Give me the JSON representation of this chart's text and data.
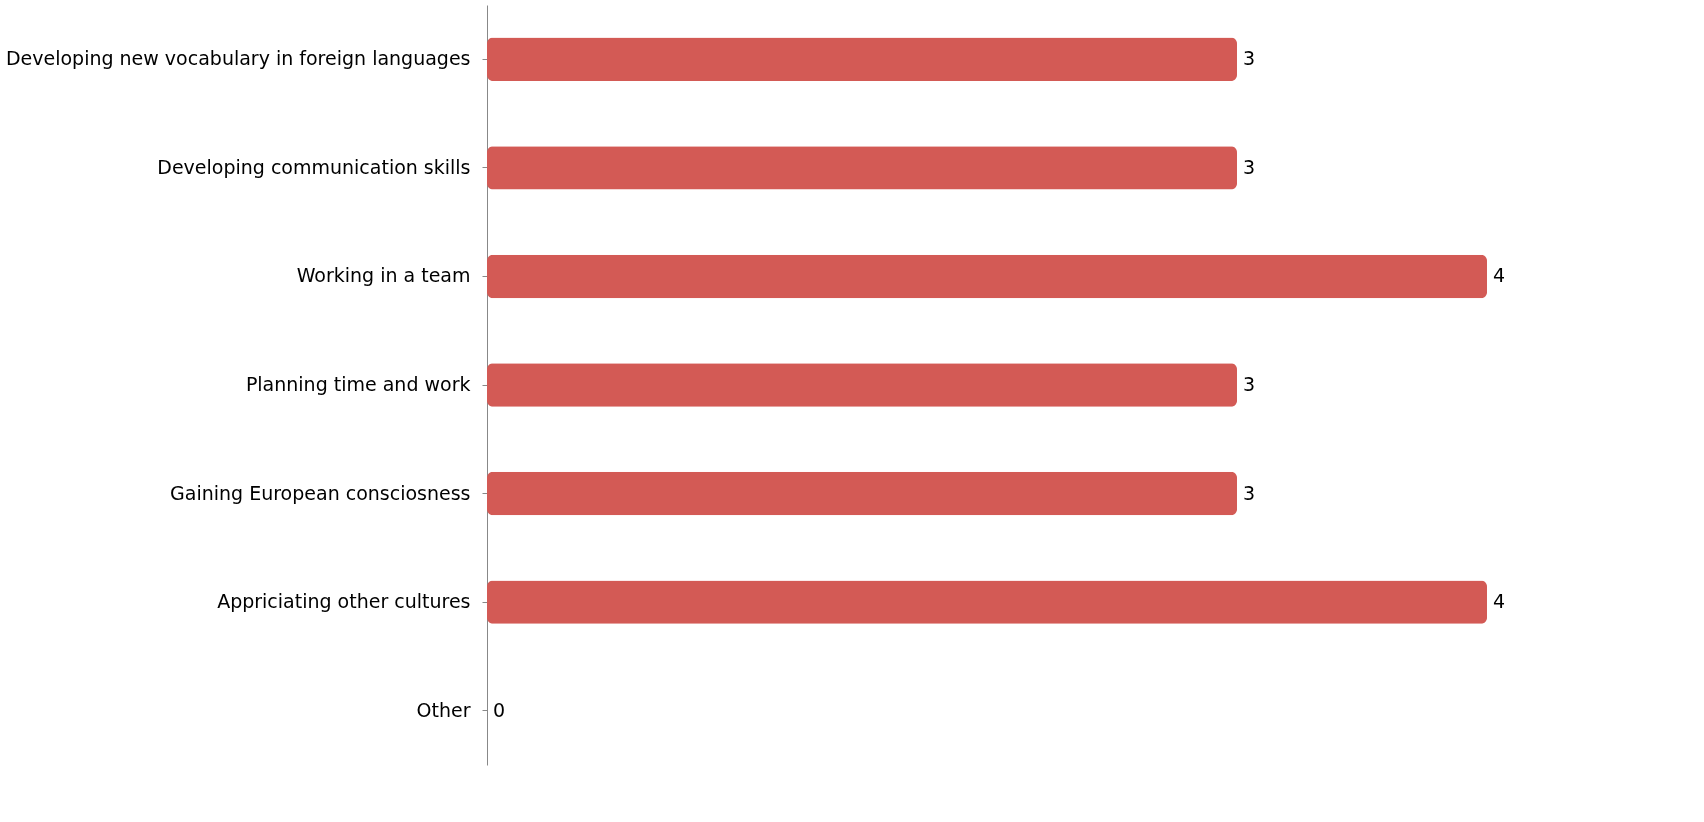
{
  "chart_data": {
    "type": "bar",
    "orientation": "horizontal",
    "categories": [
      "Developing new vocabulary in foreign languages",
      "Developing communication skills",
      "Working in a team",
      "Planning time and work",
      "Gaining European consciosness",
      "Appriciating other cultures",
      "Other"
    ],
    "values": [
      3,
      3,
      4,
      3,
      3,
      4,
      0
    ],
    "color": "#d35a55",
    "data_labels": true,
    "grid": false
  }
}
